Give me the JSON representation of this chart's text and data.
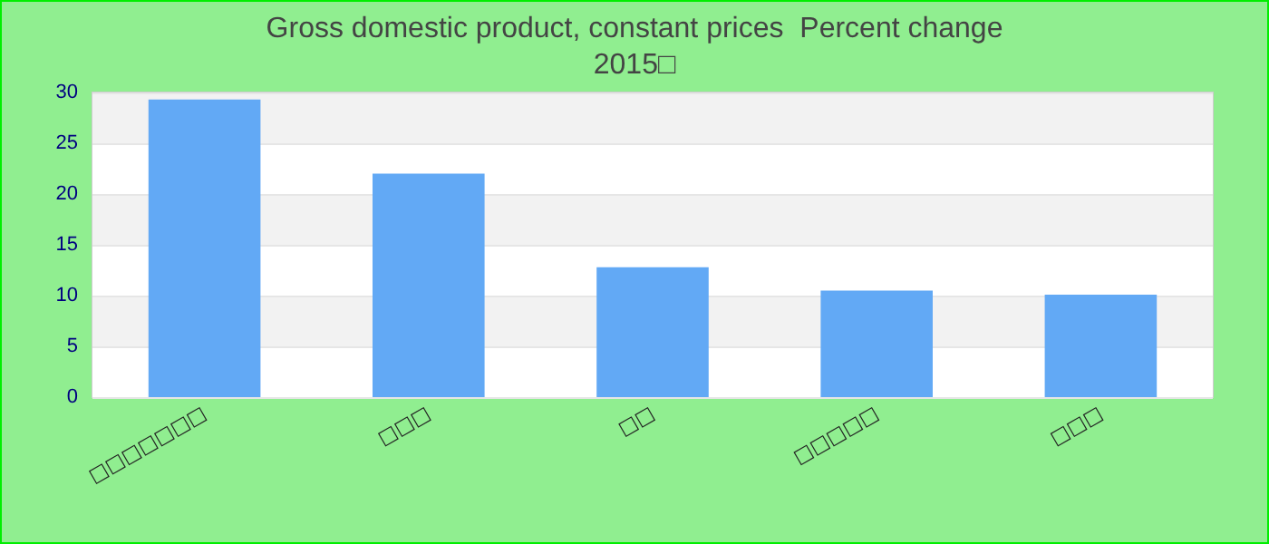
{
  "chart_data": {
    "type": "bar",
    "title": "Gross domestic product, constant prices  Percent change",
    "subtitle": "2015□",
    "categories": [
      "□□□□□□□",
      "□□□",
      "□□",
      "□□□□□",
      "□□□"
    ],
    "values": [
      29.3,
      22.0,
      12.8,
      10.5,
      10.1
    ],
    "color": "#62a9f5",
    "ylim": [
      0,
      30
    ],
    "yticks": [
      0,
      5,
      10,
      15,
      20,
      25,
      30
    ],
    "grid": "y"
  }
}
